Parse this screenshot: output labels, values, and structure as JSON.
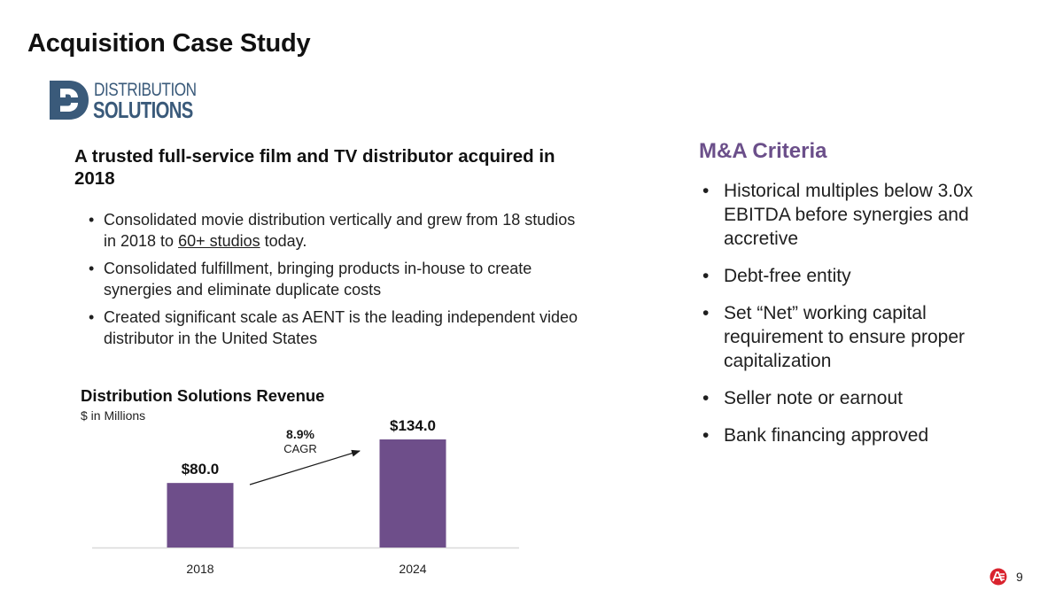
{
  "page": {
    "title": "Acquisition Case Study",
    "page_number": "9"
  },
  "logo": {
    "line1": "DISTRIBUTION",
    "line2": "SOLUTIONS",
    "color": "#3a5a7a"
  },
  "left": {
    "headline": "A trusted full-service film and TV distributor acquired in 2018",
    "bullets": [
      {
        "before": "Consolidated movie distribution vertically and grew from 18 studios in 2018 to ",
        "link": "60+ studios",
        "after": " today."
      },
      {
        "text": "Consolidated fulfillment, bringing products in-house to create synergies and eliminate duplicate costs"
      },
      {
        "text": "Created significant scale as AENT is the leading independent video distributor in the United States"
      }
    ]
  },
  "criteria": {
    "title": "M&A Criteria",
    "items": [
      "Historical multiples below 3.0x EBITDA before synergies and accretive",
      "Debt-free entity",
      "Set “Net” working capital requirement to ensure proper capitalization",
      "Seller note or earnout",
      "Bank financing approved"
    ]
  },
  "chart": {
    "title": "Distribution Solutions Revenue",
    "subtitle": "$ in Millions"
  },
  "chart_data": {
    "type": "bar",
    "categories": [
      "2018",
      "2024"
    ],
    "values": [
      80.0,
      134.0
    ],
    "value_labels": [
      "$80.0",
      "$134.0"
    ],
    "title": "Distribution Solutions Revenue",
    "subtitle": "$ in Millions",
    "xlabel": "",
    "ylabel": "",
    "ylim": [
      0,
      134
    ],
    "grid": false,
    "legend": "none",
    "annotation": {
      "value": "8.9%",
      "label": "CAGR"
    },
    "bar_color": "#6e4e8a",
    "baseline_color": "#d9d9d9"
  },
  "colors": {
    "accent": "#6b4f8a",
    "footer_logo_red": "#d9232e"
  }
}
